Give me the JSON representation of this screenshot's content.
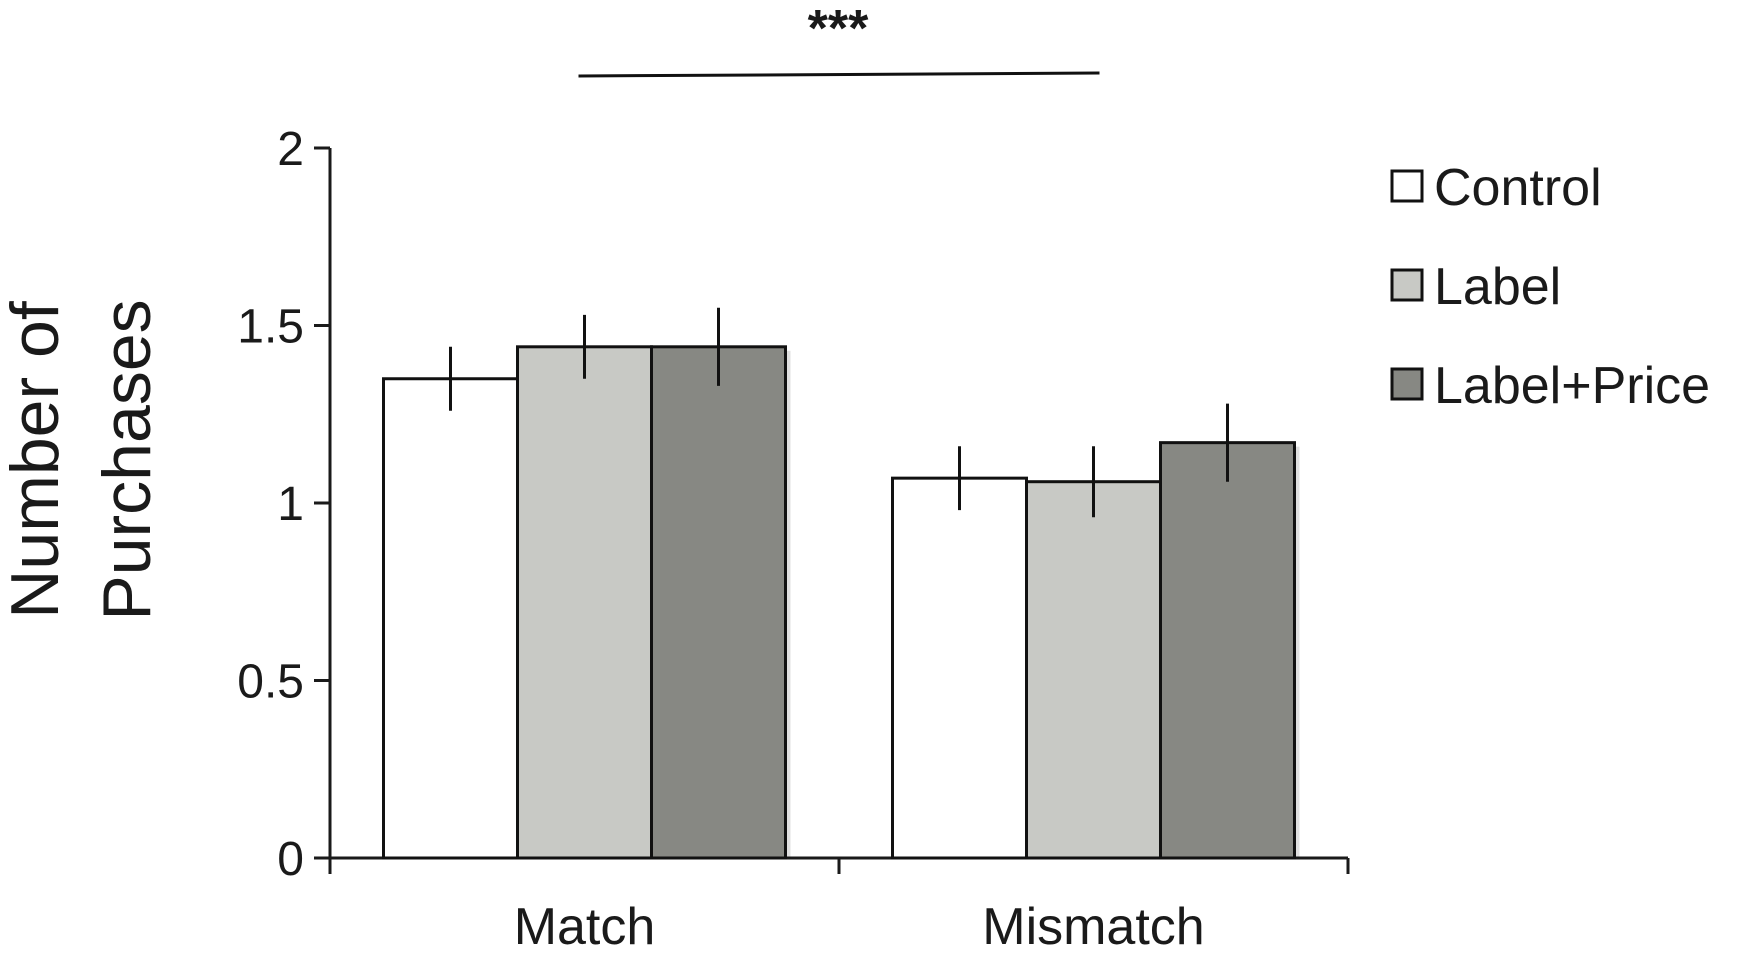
{
  "chart_data": {
    "type": "bar",
    "categories": [
      "Match",
      "Mismatch"
    ],
    "series": [
      {
        "name": "Control",
        "values": [
          1.35,
          1.07
        ],
        "errors": [
          0.09,
          0.09
        ],
        "color": "#ffffff"
      },
      {
        "name": "Label",
        "values": [
          1.44,
          1.06
        ],
        "errors": [
          0.09,
          0.1
        ],
        "color": "#c8c9c5"
      },
      {
        "name": "Label+Price",
        "values": [
          1.44,
          1.17
        ],
        "errors": [
          0.11,
          0.11
        ],
        "color": "#878883"
      }
    ],
    "ylabel_lines": [
      "Number of",
      "Purchases"
    ],
    "ylim": [
      0,
      2
    ],
    "yticks": [
      0,
      0.5,
      1,
      1.5,
      2
    ],
    "ytick_labels": [
      "0",
      "0.5",
      "1",
      "1.5",
      "2"
    ],
    "legend_position": "right",
    "significance": {
      "label": "***",
      "between": [
        "Match",
        "Mismatch"
      ]
    },
    "grid": false
  }
}
